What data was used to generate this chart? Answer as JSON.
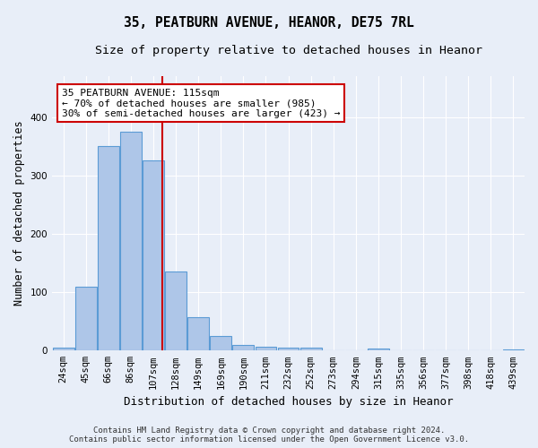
{
  "title": "35, PEATBURN AVENUE, HEANOR, DE75 7RL",
  "subtitle": "Size of property relative to detached houses in Heanor",
  "xlabel": "Distribution of detached houses by size in Heanor",
  "ylabel": "Number of detached properties",
  "categories": [
    "24sqm",
    "45sqm",
    "66sqm",
    "86sqm",
    "107sqm",
    "128sqm",
    "149sqm",
    "169sqm",
    "190sqm",
    "211sqm",
    "232sqm",
    "252sqm",
    "273sqm",
    "294sqm",
    "315sqm",
    "335sqm",
    "356sqm",
    "377sqm",
    "398sqm",
    "418sqm",
    "439sqm"
  ],
  "values": [
    5,
    110,
    350,
    375,
    325,
    135,
    57,
    25,
    10,
    7,
    5,
    5,
    1,
    1,
    4,
    1,
    1,
    1,
    1,
    1,
    2
  ],
  "bar_color": "#aec6e8",
  "bar_edge_color": "#5b9bd5",
  "highlight_line_color": "#cc0000",
  "annotation_line1": "35 PEATBURN AVENUE: 115sqm",
  "annotation_line2": "← 70% of detached houses are smaller (985)",
  "annotation_line3": "30% of semi-detached houses are larger (423) →",
  "annotation_box_color": "#ffffff",
  "annotation_box_edge": "#cc0000",
  "footer_line1": "Contains HM Land Registry data © Crown copyright and database right 2024.",
  "footer_line2": "Contains public sector information licensed under the Open Government Licence v3.0.",
  "ylim": [
    0,
    470
  ],
  "background_color": "#e8eef8",
  "grid_color": "#ffffff",
  "title_fontsize": 10.5,
  "subtitle_fontsize": 9.5,
  "tick_fontsize": 7.5,
  "ylabel_fontsize": 8.5,
  "xlabel_fontsize": 9,
  "footer_fontsize": 6.5,
  "annotation_fontsize": 8
}
